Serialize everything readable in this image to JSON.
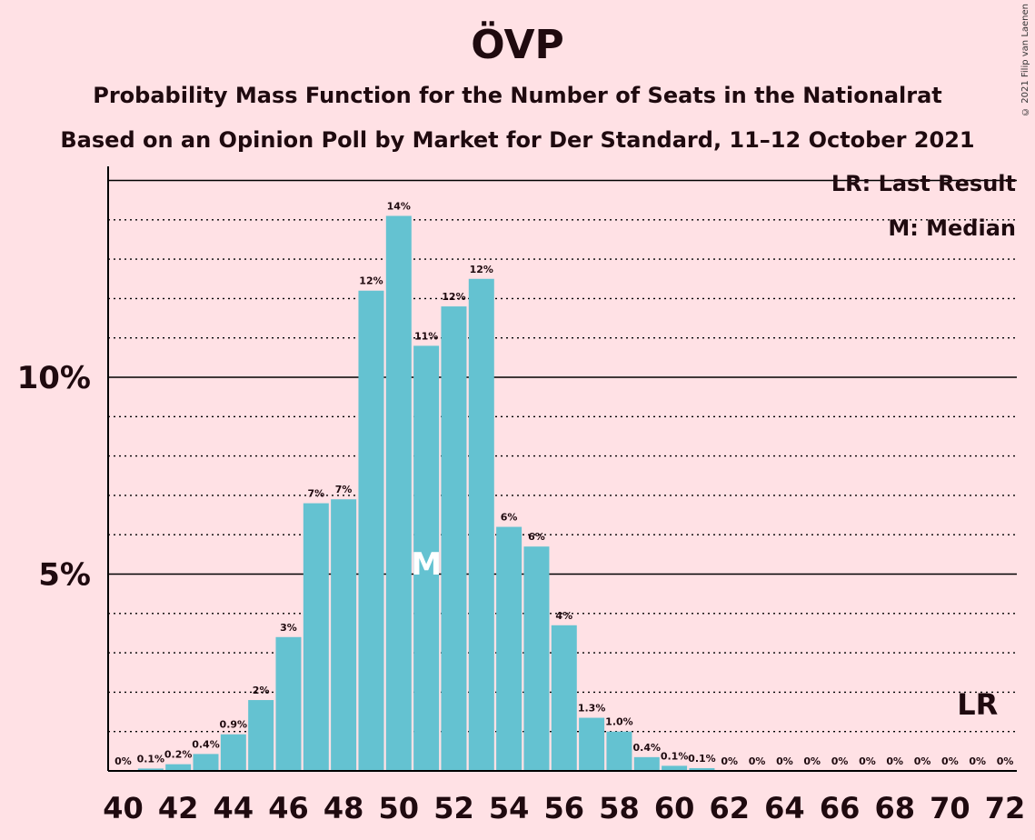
{
  "title": "ÖVP",
  "subtitle_1": "Probability Mass Function for the Number of Seats in the Nationalrat",
  "subtitle_2": "Based on an Opinion Poll by Market for Der Standard, 11–12 October 2021",
  "copyright": "© 2021 Filip van Laenen",
  "legend": {
    "lr": "LR: Last Result",
    "m": "M: Median"
  },
  "colors": {
    "bar": "#64c2d1",
    "background": "#ffe1e5",
    "text": "#1f0a0f"
  },
  "chart_data": {
    "type": "bar",
    "x": [
      40,
      41,
      42,
      43,
      44,
      45,
      46,
      47,
      48,
      49,
      50,
      51,
      52,
      53,
      54,
      55,
      56,
      57,
      58,
      59,
      60,
      61,
      62,
      63,
      64,
      65,
      66,
      67,
      68,
      69,
      70,
      71,
      72
    ],
    "values": [
      0,
      0.06,
      0.17,
      0.43,
      0.93,
      1.8,
      3.4,
      6.8,
      6.9,
      12.2,
      14.1,
      10.8,
      11.8,
      12.5,
      6.2,
      5.7,
      3.7,
      1.35,
      1.0,
      0.35,
      0.13,
      0.07,
      0,
      0,
      0,
      0,
      0,
      0,
      0,
      0,
      0,
      0,
      0
    ],
    "data_labels": [
      "0%",
      "0.1%",
      "0.2%",
      "0.4%",
      "0.9%",
      "2%",
      "3%",
      "7%",
      "7%",
      "12%",
      "14%",
      "11%",
      "12%",
      "12%",
      "6%",
      "6%",
      "4%",
      "1.3%",
      "1.0%",
      "0.4%",
      "0.1%",
      "0.1%",
      "0%",
      "0%",
      "0%",
      "0%",
      "0%",
      "0%",
      "0%",
      "0%",
      "0%",
      "0%",
      "0%"
    ],
    "x_ticks": [
      40,
      42,
      44,
      46,
      48,
      50,
      52,
      54,
      56,
      58,
      60,
      62,
      64,
      66,
      68,
      70,
      72
    ],
    "y_ticks": [
      {
        "value": 5,
        "label": "5%"
      },
      {
        "value": 10,
        "label": "10%"
      }
    ],
    "y_unit": "%",
    "ylim": [
      0,
      15.4
    ],
    "gridlines_dotted_every": 1,
    "gridlines_solid_every": 5,
    "median": 51,
    "median_marker": "M",
    "last_result": 71,
    "last_result_marker": "LR",
    "legend_placement": "top-right"
  }
}
